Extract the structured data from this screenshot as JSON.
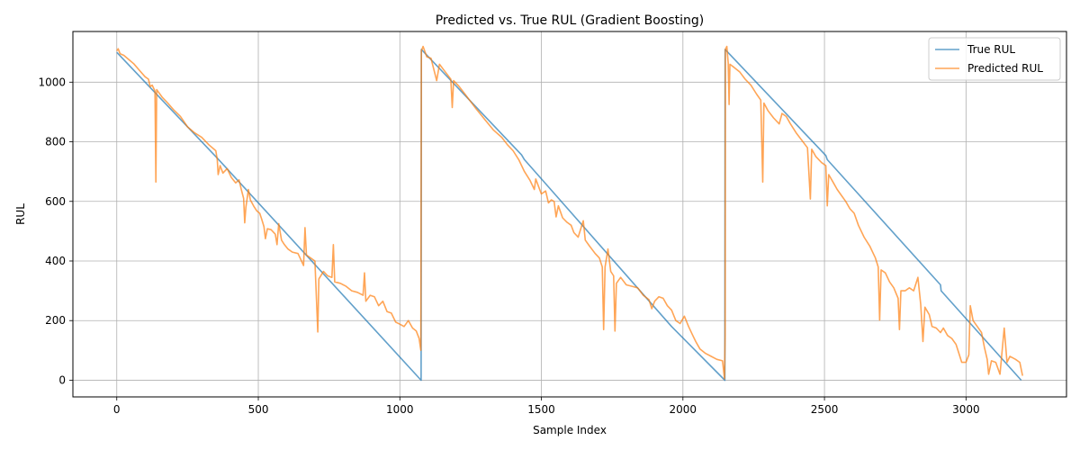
{
  "chart_data": {
    "type": "line",
    "title": "Predicted vs. True RUL (Gradient Boosting)",
    "xlabel": "Sample Index",
    "ylabel": "RUL",
    "xlim": [
      -155,
      3355
    ],
    "ylim": [
      -56,
      1170
    ],
    "xticks": [
      0,
      500,
      1000,
      1500,
      2000,
      2500,
      3000
    ],
    "yticks": [
      0,
      200,
      400,
      600,
      800,
      1000
    ],
    "grid": true,
    "legend_position": "top-right",
    "series": [
      {
        "name": "True RUL",
        "color": "#1f77b4",
        "points": [
          [
            0,
            1100
          ],
          [
            355,
            745
          ],
          [
            360,
            740
          ],
          [
            1075,
            0
          ],
          [
            1076,
            1110
          ],
          [
            1430,
            756
          ],
          [
            1440,
            740
          ],
          [
            1960,
            180
          ],
          [
            2148,
            0
          ],
          [
            2149,
            1110
          ],
          [
            2505,
            754
          ],
          [
            2510,
            740
          ],
          [
            2910,
            320
          ],
          [
            2912,
            300
          ],
          [
            3195,
            0
          ]
        ]
      },
      {
        "name": "Predicted RUL",
        "color": "#ff7f0e",
        "points": [
          [
            0,
            1105
          ],
          [
            5,
            1112
          ],
          [
            12,
            1095
          ],
          [
            25,
            1090
          ],
          [
            40,
            1078
          ],
          [
            60,
            1062
          ],
          [
            80,
            1040
          ],
          [
            100,
            1018
          ],
          [
            112,
            1010
          ],
          [
            118,
            985
          ],
          [
            125,
            990
          ],
          [
            135,
            970
          ],
          [
            138,
            665
          ],
          [
            141,
            975
          ],
          [
            160,
            950
          ],
          [
            180,
            930
          ],
          [
            200,
            908
          ],
          [
            225,
            885
          ],
          [
            250,
            850
          ],
          [
            275,
            830
          ],
          [
            300,
            815
          ],
          [
            325,
            790
          ],
          [
            350,
            770
          ],
          [
            355,
            740
          ],
          [
            358,
            690
          ],
          [
            365,
            720
          ],
          [
            375,
            695
          ],
          [
            390,
            710
          ],
          [
            405,
            680
          ],
          [
            420,
            662
          ],
          [
            432,
            672
          ],
          [
            440,
            640
          ],
          [
            448,
            610
          ],
          [
            452,
            528
          ],
          [
            456,
            580
          ],
          [
            465,
            640
          ],
          [
            472,
            605
          ],
          [
            485,
            582
          ],
          [
            495,
            568
          ],
          [
            505,
            560
          ],
          [
            512,
            540
          ],
          [
            520,
            515
          ],
          [
            525,
            475
          ],
          [
            532,
            508
          ],
          [
            545,
            505
          ],
          [
            560,
            490
          ],
          [
            566,
            455
          ],
          [
            572,
            525
          ],
          [
            582,
            470
          ],
          [
            592,
            455
          ],
          [
            605,
            440
          ],
          [
            620,
            430
          ],
          [
            640,
            425
          ],
          [
            660,
            385
          ],
          [
            665,
            512
          ],
          [
            670,
            420
          ],
          [
            685,
            410
          ],
          [
            700,
            400
          ],
          [
            710,
            162
          ],
          [
            714,
            340
          ],
          [
            730,
            365
          ],
          [
            745,
            350
          ],
          [
            760,
            345
          ],
          [
            765,
            455
          ],
          [
            770,
            330
          ],
          [
            790,
            325
          ],
          [
            810,
            315
          ],
          [
            830,
            300
          ],
          [
            850,
            295
          ],
          [
            870,
            285
          ],
          [
            875,
            360
          ],
          [
            880,
            265
          ],
          [
            895,
            285
          ],
          [
            910,
            280
          ],
          [
            925,
            250
          ],
          [
            940,
            265
          ],
          [
            955,
            230
          ],
          [
            970,
            225
          ],
          [
            985,
            195
          ],
          [
            1000,
            188
          ],
          [
            1015,
            180
          ],
          [
            1030,
            200
          ],
          [
            1045,
            175
          ],
          [
            1058,
            165
          ],
          [
            1068,
            140
          ],
          [
            1074,
            100
          ],
          [
            1076,
            1105
          ],
          [
            1082,
            1120
          ],
          [
            1095,
            1085
          ],
          [
            1110,
            1080
          ],
          [
            1130,
            1005
          ],
          [
            1140,
            1060
          ],
          [
            1160,
            1035
          ],
          [
            1180,
            1010
          ],
          [
            1185,
            915
          ],
          [
            1190,
            1005
          ],
          [
            1210,
            985
          ],
          [
            1230,
            960
          ],
          [
            1250,
            935
          ],
          [
            1270,
            910
          ],
          [
            1300,
            875
          ],
          [
            1330,
            840
          ],
          [
            1360,
            815
          ],
          [
            1380,
            790
          ],
          [
            1400,
            770
          ],
          [
            1420,
            740
          ],
          [
            1440,
            700
          ],
          [
            1460,
            670
          ],
          [
            1475,
            640
          ],
          [
            1480,
            675
          ],
          [
            1490,
            650
          ],
          [
            1500,
            625
          ],
          [
            1515,
            635
          ],
          [
            1525,
            595
          ],
          [
            1535,
            605
          ],
          [
            1545,
            600
          ],
          [
            1552,
            548
          ],
          [
            1560,
            585
          ],
          [
            1575,
            545
          ],
          [
            1590,
            530
          ],
          [
            1605,
            520
          ],
          [
            1615,
            495
          ],
          [
            1630,
            480
          ],
          [
            1648,
            535
          ],
          [
            1655,
            470
          ],
          [
            1670,
            450
          ],
          [
            1690,
            425
          ],
          [
            1705,
            410
          ],
          [
            1715,
            380
          ],
          [
            1720,
            170
          ],
          [
            1725,
            380
          ],
          [
            1735,
            440
          ],
          [
            1745,
            365
          ],
          [
            1755,
            350
          ],
          [
            1760,
            165
          ],
          [
            1765,
            325
          ],
          [
            1780,
            345
          ],
          [
            1800,
            320
          ],
          [
            1820,
            315
          ],
          [
            1840,
            310
          ],
          [
            1860,
            285
          ],
          [
            1880,
            270
          ],
          [
            1890,
            240
          ],
          [
            1900,
            265
          ],
          [
            1915,
            280
          ],
          [
            1930,
            275
          ],
          [
            1945,
            250
          ],
          [
            1960,
            235
          ],
          [
            1975,
            200
          ],
          [
            1990,
            190
          ],
          [
            2005,
            215
          ],
          [
            2020,
            180
          ],
          [
            2035,
            150
          ],
          [
            2045,
            130
          ],
          [
            2060,
            105
          ],
          [
            2080,
            90
          ],
          [
            2100,
            80
          ],
          [
            2120,
            70
          ],
          [
            2140,
            65
          ],
          [
            2147,
            5
          ],
          [
            2149,
            150
          ],
          [
            2150,
            1110
          ],
          [
            2155,
            1120
          ],
          [
            2160,
            1065
          ],
          [
            2163,
            925
          ],
          [
            2166,
            1060
          ],
          [
            2180,
            1050
          ],
          [
            2200,
            1035
          ],
          [
            2220,
            1010
          ],
          [
            2240,
            990
          ],
          [
            2260,
            960
          ],
          [
            2275,
            940
          ],
          [
            2282,
            665
          ],
          [
            2286,
            930
          ],
          [
            2300,
            905
          ],
          [
            2320,
            880
          ],
          [
            2340,
            860
          ],
          [
            2350,
            895
          ],
          [
            2365,
            885
          ],
          [
            2380,
            860
          ],
          [
            2400,
            830
          ],
          [
            2420,
            805
          ],
          [
            2440,
            780
          ],
          [
            2450,
            608
          ],
          [
            2455,
            775
          ],
          [
            2470,
            750
          ],
          [
            2490,
            730
          ],
          [
            2505,
            720
          ],
          [
            2510,
            585
          ],
          [
            2515,
            690
          ],
          [
            2530,
            665
          ],
          [
            2545,
            640
          ],
          [
            2560,
            620
          ],
          [
            2575,
            600
          ],
          [
            2590,
            575
          ],
          [
            2605,
            560
          ],
          [
            2620,
            520
          ],
          [
            2640,
            480
          ],
          [
            2660,
            450
          ],
          [
            2680,
            410
          ],
          [
            2690,
            380
          ],
          [
            2695,
            202
          ],
          [
            2700,
            370
          ],
          [
            2715,
            360
          ],
          [
            2730,
            330
          ],
          [
            2745,
            310
          ],
          [
            2760,
            275
          ],
          [
            2765,
            170
          ],
          [
            2770,
            300
          ],
          [
            2785,
            300
          ],
          [
            2800,
            310
          ],
          [
            2815,
            300
          ],
          [
            2830,
            345
          ],
          [
            2840,
            255
          ],
          [
            2848,
            130
          ],
          [
            2855,
            245
          ],
          [
            2870,
            220
          ],
          [
            2880,
            180
          ],
          [
            2895,
            175
          ],
          [
            2910,
            160
          ],
          [
            2920,
            175
          ],
          [
            2935,
            150
          ],
          [
            2950,
            140
          ],
          [
            2965,
            120
          ],
          [
            2975,
            90
          ],
          [
            2985,
            60
          ],
          [
            3000,
            60
          ],
          [
            3010,
            85
          ],
          [
            3015,
            250
          ],
          [
            3025,
            200
          ],
          [
            3040,
            180
          ],
          [
            3055,
            160
          ],
          [
            3065,
            110
          ],
          [
            3075,
            70
          ],
          [
            3080,
            20
          ],
          [
            3090,
            65
          ],
          [
            3105,
            60
          ],
          [
            3120,
            20
          ],
          [
            3135,
            175
          ],
          [
            3145,
            60
          ],
          [
            3155,
            80
          ],
          [
            3165,
            75
          ],
          [
            3175,
            70
          ],
          [
            3190,
            60
          ],
          [
            3200,
            15
          ]
        ]
      }
    ]
  }
}
